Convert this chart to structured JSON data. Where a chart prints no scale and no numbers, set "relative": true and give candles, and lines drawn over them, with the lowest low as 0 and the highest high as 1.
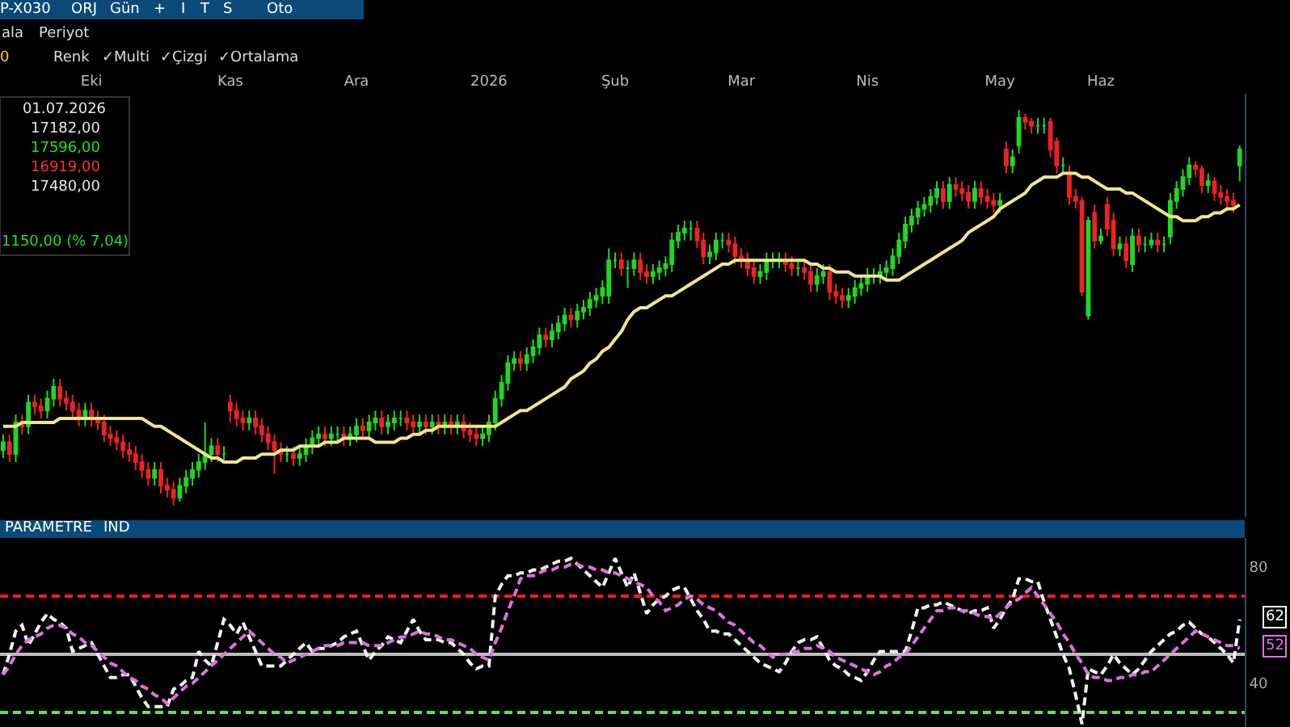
{
  "chart_data": [
    {
      "type": "candlestick",
      "relative": true,
      "tick_labels": "x",
      "categories": [
        null,
        null,
        null,
        null,
        null,
        null,
        null,
        null,
        null,
        null,
        null,
        null,
        null,
        null,
        "Eki",
        null,
        null,
        null,
        null,
        null,
        null,
        null,
        null,
        null,
        null,
        null,
        null,
        null,
        null,
        null,
        null,
        null,
        null,
        null,
        null,
        null,
        "Kas",
        null,
        null,
        null,
        null,
        null,
        null,
        null,
        null,
        null,
        null,
        null,
        null,
        null,
        null,
        null,
        null,
        null,
        null,
        null,
        "Ara",
        null,
        null,
        null,
        null,
        null,
        null,
        null,
        null,
        null,
        null,
        null,
        null,
        null,
        null,
        null,
        null,
        null,
        null,
        null,
        null,
        "2026",
        null,
        null,
        null,
        null,
        null,
        null,
        null,
        null,
        null,
        null,
        null,
        null,
        null,
        null,
        null,
        null,
        null,
        null,
        null,
        "Şub",
        null,
        null,
        null,
        null,
        null,
        null,
        null,
        null,
        null,
        null,
        null,
        null,
        null,
        null,
        null,
        null,
        null,
        null,
        null,
        "Mar",
        null,
        null,
        null,
        null,
        null,
        null,
        null,
        null,
        null,
        null,
        null,
        null,
        null,
        null,
        null,
        null,
        null,
        null,
        null,
        "Nis",
        null,
        null,
        null,
        null,
        null,
        null,
        null,
        null,
        null,
        null,
        null,
        null,
        null,
        null,
        null,
        null,
        null,
        null,
        null,
        null,
        "May",
        null,
        null,
        null,
        null,
        null,
        null,
        null,
        null,
        null,
        null,
        null,
        null,
        null,
        null,
        null,
        "Haz",
        null,
        null,
        null,
        null,
        null,
        null,
        null,
        null,
        null,
        null,
        null,
        null,
        null,
        null,
        null,
        null,
        null,
        null,
        null,
        null,
        null,
        null
      ],
      "colors": [
        "#1fd81f",
        "#ee2222",
        "#1fd81f",
        "#ee2222",
        "#1fd81f",
        "#ee2222",
        "#ee2222",
        "#1fd81f",
        "#1fd81f",
        "#ee2222",
        "#ee2222",
        "#ee2222",
        "#ee2222",
        "#1fd81f",
        "#ee2222",
        "#ee2222",
        "#ee2222",
        "#ee2222",
        "#ee2222",
        "#ee2222",
        "#ee2222",
        "#ee2222",
        "#ee2222",
        "#ee2222",
        "#1fd81f",
        "#ee2222",
        "#ee2222",
        "#ee2222",
        "#1fd81f",
        "#1fd81f",
        "#1fd81f",
        "#1fd81f",
        "#1fd81f",
        "#1fd81f",
        "#ee2222",
        "#1fd81f",
        "#ee2222",
        "#ee2222",
        "#ee2222",
        "#1fd81f",
        "#ee2222",
        "#ee2222",
        "#ee2222",
        "#ee2222",
        "#ee2222",
        "#1fd81f",
        "#ee2222",
        "#1fd81f",
        "#1fd81f",
        "#1fd81f",
        "#1fd81f",
        "#ee2222",
        "#1fd81f",
        "#1fd81f",
        "#ee2222",
        "#1fd81f",
        "#1fd81f",
        "#ee2222",
        "#1fd81f",
        "#1fd81f",
        "#ee2222",
        "#1fd81f",
        "#1fd81f",
        "#1fd81f",
        "#ee2222",
        "#ee2222",
        "#1fd81f",
        "#ee2222",
        "#1fd81f",
        "#ee2222",
        "#1fd81f",
        "#ee2222",
        "#1fd81f",
        "#ee2222",
        "#ee2222",
        "#ee2222",
        "#1fd81f",
        "#1fd81f",
        "#1fd81f",
        "#1fd81f",
        "#1fd81f",
        "#1fd81f",
        "#ee2222",
        "#1fd81f",
        "#1fd81f",
        "#1fd81f",
        "#ee2222",
        "#1fd81f",
        "#1fd81f",
        "#1fd81f",
        "#ee2222",
        "#1fd81f",
        "#1fd81f",
        "#1fd81f",
        "#1fd81f",
        "#1fd81f",
        "#1fd81f",
        "#1fd81f",
        "#ee2222",
        "#1fd81f",
        "#1fd81f",
        "#ee2222",
        "#ee2222",
        "#1fd81f",
        "#1fd81f",
        "#1fd81f",
        "#1fd81f",
        "#1fd81f",
        "#1fd81f",
        "#1fd81f",
        "#ee2222",
        "#ee2222",
        "#1fd81f",
        "#1fd81f",
        "#1fd81f",
        "#ee2222",
        "#ee2222",
        "#ee2222",
        "#ee2222",
        "#ee2222",
        "#1fd81f",
        "#1fd81f",
        "#1fd81f",
        "#1fd81f",
        "#ee2222",
        "#ee2222",
        "#1fd81f",
        "#ee2222",
        "#ee2222",
        "#1fd81f",
        "#1fd81f",
        "#ee2222",
        "#ee2222",
        "#ee2222",
        "#1fd81f",
        "#1fd81f",
        "#1fd81f",
        "#1fd81f",
        "#1fd81f",
        "#1fd81f",
        "#1fd81f",
        "#1fd81f",
        "#1fd81f",
        "#1fd81f",
        "#1fd81f",
        "#1fd81f",
        "#1fd81f",
        "#1fd81f",
        "#1fd81f",
        "#ee2222",
        "#1fd81f",
        "#ee2222",
        "#ee2222",
        "#ee2222",
        "#1fd81f",
        "#ee2222",
        "#ee2222",
        "#ee2222",
        "#1fd81f",
        "#ee2222",
        "#1fd81f",
        "#1fd81f",
        "#ee2222",
        "#ee2222",
        "#1fd81f",
        "#1fd81f",
        "#ee2222",
        "#ee2222",
        "#1fd81f",
        "#ee2222",
        "#ee2222",
        "#ee2222",
        "#1fd81f",
        "#ee2222",
        "#1fd81f",
        "#ee2222",
        "#ee2222",
        "#1fd81f",
        "#ee2222",
        "#1fd81f",
        "#ee2222",
        "#1fd81f",
        "#1fd81f",
        "#ee2222",
        "#1fd81f",
        "#1fd81f",
        "#1fd81f",
        "#1fd81f",
        "#1fd81f",
        "#ee2222",
        "#ee2222",
        "#1fd81f",
        "#ee2222",
        "#ee2222",
        "#ee2222",
        "#ee2222",
        "#1fd81f"
      ],
      "ohlc": [
        [
          0.14,
          0.18,
          0.12,
          0.16
        ],
        [
          0.16,
          0.18,
          0.11,
          0.13
        ],
        [
          0.13,
          0.23,
          0.11,
          0.21
        ],
        [
          0.21,
          0.23,
          0.18,
          0.2
        ],
        [
          0.2,
          0.28,
          0.18,
          0.26
        ],
        [
          0.26,
          0.28,
          0.23,
          0.25
        ],
        [
          0.25,
          0.27,
          0.22,
          0.24
        ],
        [
          0.24,
          0.29,
          0.22,
          0.27
        ],
        [
          0.27,
          0.32,
          0.25,
          0.3
        ],
        [
          0.3,
          0.32,
          0.25,
          0.27
        ],
        [
          0.27,
          0.29,
          0.24,
          0.26
        ],
        [
          0.26,
          0.28,
          0.22,
          0.24
        ],
        [
          0.24,
          0.26,
          0.2,
          0.22
        ],
        [
          0.22,
          0.26,
          0.2,
          0.24
        ],
        [
          0.24,
          0.26,
          0.2,
          0.22
        ],
        [
          0.22,
          0.24,
          0.19,
          0.21
        ],
        [
          0.21,
          0.23,
          0.16,
          0.18
        ],
        [
          0.18,
          0.2,
          0.15,
          0.17
        ],
        [
          0.17,
          0.19,
          0.14,
          0.16
        ],
        [
          0.16,
          0.18,
          0.12,
          0.14
        ],
        [
          0.14,
          0.16,
          0.11,
          0.13
        ],
        [
          0.13,
          0.15,
          0.09,
          0.11
        ],
        [
          0.11,
          0.13,
          0.07,
          0.09
        ],
        [
          0.09,
          0.11,
          0.05,
          0.07
        ],
        [
          0.07,
          0.11,
          0.05,
          0.09
        ],
        [
          0.09,
          0.11,
          0.03,
          0.05
        ],
        [
          0.05,
          0.07,
          0.02,
          0.04
        ],
        [
          0.04,
          0.06,
          0,
          0.02
        ],
        [
          0.02,
          0.07,
          0.01,
          0.05
        ],
        [
          0.05,
          0.09,
          0.03,
          0.07
        ],
        [
          0.07,
          0.11,
          0.05,
          0.09
        ],
        [
          0.09,
          0.13,
          0.07,
          0.11
        ],
        [
          0.11,
          0.21,
          0.09,
          0.13
        ],
        [
          0.13,
          0.17,
          0.11,
          0.15
        ],
        [
          0.15,
          0.17,
          0.11,
          0.13
        ],
        [
          0.13,
          0.15,
          0.11,
          0.13
        ],
        [
          0.26,
          0.28,
          0.21,
          0.24
        ],
        [
          0.24,
          0.26,
          0.2,
          0.22
        ],
        [
          0.22,
          0.24,
          0.19,
          0.21
        ],
        [
          0.21,
          0.24,
          0.19,
          0.22
        ],
        [
          0.22,
          0.24,
          0.18,
          0.2
        ],
        [
          0.2,
          0.22,
          0.16,
          0.18
        ],
        [
          0.18,
          0.2,
          0.14,
          0.16
        ],
        [
          0.16,
          0.18,
          0.08,
          0.14
        ],
        [
          0.14,
          0.16,
          0.11,
          0.13
        ],
        [
          0.13,
          0.15,
          0.11,
          0.13
        ],
        [
          0.13,
          0.15,
          0.1,
          0.12
        ],
        [
          0.12,
          0.15,
          0.1,
          0.13
        ],
        [
          0.13,
          0.17,
          0.11,
          0.15
        ],
        [
          0.15,
          0.19,
          0.13,
          0.17
        ],
        [
          0.17,
          0.2,
          0.15,
          0.18
        ],
        [
          0.18,
          0.2,
          0.15,
          0.17
        ],
        [
          0.17,
          0.2,
          0.15,
          0.18
        ],
        [
          0.18,
          0.2,
          0.16,
          0.18
        ],
        [
          0.18,
          0.2,
          0.15,
          0.17
        ],
        [
          0.17,
          0.2,
          0.15,
          0.18
        ],
        [
          0.18,
          0.22,
          0.16,
          0.2
        ],
        [
          0.2,
          0.22,
          0.17,
          0.19
        ],
        [
          0.19,
          0.23,
          0.17,
          0.21
        ],
        [
          0.21,
          0.24,
          0.19,
          0.22
        ],
        [
          0.22,
          0.24,
          0.18,
          0.2
        ],
        [
          0.2,
          0.23,
          0.18,
          0.21
        ],
        [
          0.21,
          0.24,
          0.19,
          0.22
        ],
        [
          0.22,
          0.24,
          0.2,
          0.22
        ],
        [
          0.22,
          0.24,
          0.19,
          0.21
        ],
        [
          0.21,
          0.23,
          0.18,
          0.2
        ],
        [
          0.2,
          0.23,
          0.18,
          0.21
        ],
        [
          0.21,
          0.23,
          0.18,
          0.2
        ],
        [
          0.2,
          0.23,
          0.18,
          0.21
        ],
        [
          0.21,
          0.23,
          0.18,
          0.2
        ],
        [
          0.2,
          0.23,
          0.18,
          0.21
        ],
        [
          0.21,
          0.23,
          0.18,
          0.2
        ],
        [
          0.2,
          0.23,
          0.18,
          0.21
        ],
        [
          0.21,
          0.23,
          0.17,
          0.19
        ],
        [
          0.19,
          0.21,
          0.16,
          0.18
        ],
        [
          0.18,
          0.2,
          0.15,
          0.17
        ],
        [
          0.17,
          0.2,
          0.15,
          0.18
        ],
        [
          0.18,
          0.23,
          0.16,
          0.21
        ],
        [
          0.21,
          0.29,
          0.19,
          0.27
        ],
        [
          0.27,
          0.33,
          0.25,
          0.31
        ],
        [
          0.31,
          0.38,
          0.29,
          0.36
        ],
        [
          0.36,
          0.39,
          0.34,
          0.37
        ],
        [
          0.37,
          0.39,
          0.34,
          0.36
        ],
        [
          0.36,
          0.4,
          0.34,
          0.38
        ],
        [
          0.38,
          0.42,
          0.36,
          0.4
        ],
        [
          0.4,
          0.45,
          0.38,
          0.43
        ],
        [
          0.43,
          0.45,
          0.4,
          0.42
        ],
        [
          0.42,
          0.46,
          0.4,
          0.44
        ],
        [
          0.44,
          0.48,
          0.42,
          0.46
        ],
        [
          0.46,
          0.5,
          0.44,
          0.48
        ],
        [
          0.48,
          0.5,
          0.45,
          0.47
        ],
        [
          0.47,
          0.51,
          0.45,
          0.49
        ],
        [
          0.49,
          0.52,
          0.47,
          0.5
        ],
        [
          0.5,
          0.54,
          0.48,
          0.52
        ],
        [
          0.52,
          0.55,
          0.5,
          0.53
        ],
        [
          0.53,
          0.57,
          0.51,
          0.55
        ],
        [
          0.53,
          0.65,
          0.51,
          0.62
        ],
        [
          0.62,
          0.64,
          0.6,
          0.62
        ],
        [
          0.62,
          0.64,
          0.58,
          0.6
        ],
        [
          0.6,
          0.62,
          0.55,
          0.6
        ],
        [
          0.6,
          0.64,
          0.58,
          0.62
        ],
        [
          0.62,
          0.64,
          0.57,
          0.59
        ],
        [
          0.59,
          0.61,
          0.56,
          0.58
        ],
        [
          0.58,
          0.61,
          0.56,
          0.59
        ],
        [
          0.59,
          0.62,
          0.57,
          0.6
        ],
        [
          0.6,
          0.63,
          0.58,
          0.61
        ],
        [
          0.61,
          0.69,
          0.59,
          0.67
        ],
        [
          0.67,
          0.71,
          0.65,
          0.69
        ],
        [
          0.69,
          0.72,
          0.67,
          0.7
        ],
        [
          0.7,
          0.72,
          0.67,
          0.7
        ],
        [
          0.7,
          0.72,
          0.65,
          0.67
        ],
        [
          0.67,
          0.69,
          0.61,
          0.63
        ],
        [
          0.63,
          0.66,
          0.61,
          0.64
        ],
        [
          0.64,
          0.69,
          0.62,
          0.67
        ],
        [
          0.67,
          0.69,
          0.65,
          0.67
        ],
        [
          0.67,
          0.69,
          0.64,
          0.66
        ],
        [
          0.66,
          0.68,
          0.61,
          0.63
        ],
        [
          0.63,
          0.65,
          0.6,
          0.62
        ],
        [
          0.62,
          0.64,
          0.58,
          0.6
        ],
        [
          0.6,
          0.62,
          0.56,
          0.58
        ],
        [
          0.58,
          0.61,
          0.56,
          0.59
        ],
        [
          0.59,
          0.64,
          0.57,
          0.62
        ],
        [
          0.62,
          0.64,
          0.6,
          0.62
        ],
        [
          0.62,
          0.64,
          0.6,
          0.62
        ],
        [
          0.62,
          0.64,
          0.59,
          0.61
        ],
        [
          0.61,
          0.63,
          0.58,
          0.6
        ],
        [
          0.6,
          0.62,
          0.58,
          0.6
        ],
        [
          0.6,
          0.62,
          0.57,
          0.59
        ],
        [
          0.59,
          0.61,
          0.54,
          0.56
        ],
        [
          0.56,
          0.6,
          0.54,
          0.58
        ],
        [
          0.58,
          0.61,
          0.56,
          0.59
        ],
        [
          0.59,
          0.61,
          0.52,
          0.54
        ],
        [
          0.54,
          0.56,
          0.51,
          0.53
        ],
        [
          0.53,
          0.55,
          0.5,
          0.52
        ],
        [
          0.52,
          0.55,
          0.5,
          0.53
        ],
        [
          0.53,
          0.57,
          0.51,
          0.55
        ],
        [
          0.55,
          0.58,
          0.53,
          0.56
        ],
        [
          0.56,
          0.6,
          0.54,
          0.58
        ],
        [
          0.58,
          0.6,
          0.56,
          0.58
        ],
        [
          0.58,
          0.61,
          0.56,
          0.59
        ],
        [
          0.59,
          0.62,
          0.57,
          0.6
        ],
        [
          0.6,
          0.65,
          0.58,
          0.63
        ],
        [
          0.63,
          0.69,
          0.61,
          0.67
        ],
        [
          0.67,
          0.73,
          0.65,
          0.71
        ],
        [
          0.71,
          0.75,
          0.69,
          0.73
        ],
        [
          0.73,
          0.77,
          0.71,
          0.75
        ],
        [
          0.75,
          0.78,
          0.73,
          0.76
        ],
        [
          0.76,
          0.8,
          0.74,
          0.78
        ],
        [
          0.78,
          0.82,
          0.76,
          0.8
        ],
        [
          0.8,
          0.82,
          0.75,
          0.77
        ],
        [
          0.77,
          0.83,
          0.75,
          0.81
        ],
        [
          0.81,
          0.83,
          0.78,
          0.8
        ],
        [
          0.8,
          0.82,
          0.77,
          0.79
        ],
        [
          0.79,
          0.81,
          0.75,
          0.77
        ],
        [
          0.77,
          0.82,
          0.75,
          0.8
        ],
        [
          0.8,
          0.82,
          0.76,
          0.78
        ],
        [
          0.78,
          0.8,
          0.75,
          0.77
        ],
        [
          0.77,
          0.79,
          0.74,
          0.76
        ],
        [
          0.76,
          0.79,
          0.74,
          0.77
        ],
        [
          0.9,
          0.92,
          0.84,
          0.86
        ],
        [
          0.86,
          0.9,
          0.84,
          0.88
        ],
        [
          0.91,
          1.0,
          0.89,
          0.98
        ],
        [
          0.98,
          0.99,
          0.95,
          0.97
        ],
        [
          0.97,
          0.98,
          0.94,
          0.96
        ],
        [
          0.96,
          0.98,
          0.94,
          0.96
        ],
        [
          0.96,
          0.98,
          0.94,
          0.96
        ],
        [
          0.97,
          0.98,
          0.88,
          0.9
        ],
        [
          0.92,
          0.93,
          0.84,
          0.86
        ],
        [
          0.86,
          0.88,
          0.84,
          0.86
        ],
        [
          0.84,
          0.86,
          0.76,
          0.78
        ],
        [
          0.78,
          0.8,
          0.75,
          0.77
        ],
        [
          0.77,
          0.78,
          0.53,
          0.54
        ],
        [
          0.48,
          0.73,
          0.47,
          0.72
        ],
        [
          0.74,
          0.76,
          0.65,
          0.67
        ],
        [
          0.67,
          0.7,
          0.66,
          0.68
        ],
        [
          0.76,
          0.78,
          0.68,
          0.7
        ],
        [
          0.72,
          0.74,
          0.63,
          0.65
        ],
        [
          0.65,
          0.68,
          0.63,
          0.66
        ],
        [
          0.66,
          0.68,
          0.6,
          0.62
        ],
        [
          0.61,
          0.7,
          0.59,
          0.68
        ],
        [
          0.68,
          0.7,
          0.64,
          0.66
        ],
        [
          0.66,
          0.68,
          0.64,
          0.66
        ],
        [
          0.66,
          0.69,
          0.65,
          0.67
        ],
        [
          0.67,
          0.69,
          0.64,
          0.66
        ],
        [
          0.66,
          0.68,
          0.64,
          0.66
        ],
        [
          0.68,
          0.79,
          0.66,
          0.77
        ],
        [
          0.77,
          0.82,
          0.75,
          0.8
        ],
        [
          0.8,
          0.85,
          0.78,
          0.83
        ],
        [
          0.83,
          0.88,
          0.81,
          0.86
        ],
        [
          0.86,
          0.87,
          0.83,
          0.85
        ],
        [
          0.85,
          0.86,
          0.79,
          0.81
        ],
        [
          0.81,
          0.84,
          0.79,
          0.82
        ],
        [
          0.82,
          0.83,
          0.77,
          0.79
        ],
        [
          0.79,
          0.81,
          0.76,
          0.78
        ],
        [
          0.78,
          0.8,
          0.75,
          0.77
        ],
        [
          0.77,
          0.79,
          0.74,
          0.76
        ],
        [
          0.86,
          0.91,
          0.82,
          0.9
        ]
      ],
      "series": [
        {
          "type": "line",
          "color": "#f0e68c",
          "values": [
            0.2,
            0.2,
            0.2,
            0.21,
            0.21,
            0.21,
            0.21,
            0.21,
            0.21,
            0.22,
            0.22,
            0.22,
            0.22,
            0.22,
            0.22,
            0.22,
            0.22,
            0.22,
            0.22,
            0.22,
            0.22,
            0.22,
            0.22,
            0.21,
            0.2,
            0.2,
            0.19,
            0.18,
            0.17,
            0.16,
            0.15,
            0.14,
            0.13,
            0.12,
            0.12,
            0.11,
            0.11,
            0.11,
            0.12,
            0.12,
            0.12,
            0.13,
            0.13,
            0.13,
            0.14,
            0.14,
            0.14,
            0.15,
            0.15,
            0.15,
            0.15,
            0.16,
            0.16,
            0.16,
            0.17,
            0.17,
            0.17,
            0.17,
            0.17,
            0.16,
            0.16,
            0.16,
            0.16,
            0.17,
            0.17,
            0.18,
            0.18,
            0.19,
            0.19,
            0.2,
            0.2,
            0.2,
            0.2,
            0.2,
            0.2,
            0.2,
            0.2,
            0.2,
            0.2,
            0.21,
            0.22,
            0.23,
            0.24,
            0.24,
            0.25,
            0.26,
            0.27,
            0.28,
            0.29,
            0.3,
            0.32,
            0.33,
            0.34,
            0.36,
            0.37,
            0.39,
            0.4,
            0.42,
            0.44,
            0.47,
            0.49,
            0.5,
            0.5,
            0.51,
            0.52,
            0.53,
            0.53,
            0.54,
            0.55,
            0.56,
            0.57,
            0.58,
            0.59,
            0.6,
            0.61,
            0.61,
            0.62,
            0.62,
            0.62,
            0.62,
            0.62,
            0.62,
            0.62,
            0.62,
            0.62,
            0.62,
            0.62,
            0.62,
            0.61,
            0.61,
            0.6,
            0.6,
            0.59,
            0.59,
            0.59,
            0.58,
            0.58,
            0.58,
            0.58,
            0.58,
            0.57,
            0.57,
            0.57,
            0.58,
            0.59,
            0.6,
            0.61,
            0.62,
            0.63,
            0.64,
            0.65,
            0.66,
            0.67,
            0.69,
            0.7,
            0.71,
            0.72,
            0.73,
            0.75,
            0.76,
            0.77,
            0.78,
            0.79,
            0.81,
            0.82,
            0.83,
            0.83,
            0.83,
            0.84,
            0.84,
            0.84,
            0.83,
            0.83,
            0.82,
            0.81,
            0.8,
            0.8,
            0.8,
            0.79,
            0.79,
            0.78,
            0.77,
            0.76,
            0.75,
            0.74,
            0.73,
            0.73,
            0.72,
            0.72,
            0.72,
            0.73,
            0.73,
            0.74,
            0.74,
            0.75,
            0.75,
            0.76
          ]
        }
      ],
      "annotations": [
        "01.07.2026",
        "17182,00",
        "17596,00",
        "16919,00",
        "17480,00",
        "1150,00 (% 7,04)",
        "P-X030",
        "ORJ",
        "Gün",
        "+",
        "I",
        "T",
        "S",
        "Oto",
        "ala",
        "Periyot",
        "0",
        "Renk",
        "✓Multi",
        "✓Çizgi",
        "✓Ortalama"
      ]
    },
    {
      "type": "line",
      "tick_labels": "y",
      "line_style": "dashed",
      "categories": [
        null,
        null,
        null,
        null,
        null,
        null,
        null,
        null,
        null,
        null,
        null,
        null,
        null,
        null,
        null,
        null,
        null,
        null,
        null,
        null,
        null,
        null,
        null,
        null,
        null,
        null,
        null,
        null,
        null,
        null,
        null,
        null,
        null,
        null,
        null,
        null,
        null,
        null,
        null,
        null,
        null,
        null,
        null,
        null,
        null,
        null,
        null,
        null,
        null,
        null,
        null,
        null,
        null,
        null,
        null,
        null,
        null,
        null,
        null,
        null,
        null,
        null,
        null,
        null,
        null,
        null,
        null,
        null,
        null,
        null,
        null,
        null,
        null,
        null,
        null,
        null,
        null,
        null,
        null,
        null,
        null,
        null,
        null,
        null,
        null,
        null,
        null,
        null,
        null,
        null,
        null,
        null,
        null,
        null,
        null,
        null,
        null,
        null,
        null,
        null,
        null,
        null,
        null,
        null,
        null,
        null,
        null,
        null,
        null,
        null,
        null,
        null,
        null,
        null,
        null,
        null,
        null,
        null,
        null,
        null,
        null,
        null,
        null,
        null,
        null,
        null,
        null,
        null,
        null,
        null,
        null,
        null,
        null,
        null,
        null,
        null,
        null,
        null,
        null,
        null,
        null,
        null,
        null,
        null,
        null,
        null,
        null,
        null,
        null,
        null,
        null,
        null,
        null,
        null,
        null,
        null,
        null,
        null,
        null,
        null,
        null,
        null,
        null,
        null,
        null,
        null,
        null,
        null,
        null,
        null,
        null,
        null,
        null,
        null,
        null,
        null,
        null,
        null,
        null,
        null,
        null,
        null,
        null,
        null,
        null,
        null,
        null,
        null,
        null,
        null,
        null,
        null,
        null,
        null,
        null,
        null,
        null
      ],
      "ylim": [
        25,
        90
      ],
      "yticks": [
        40,
        80
      ],
      "ref_lines": [
        {
          "axis": "y",
          "value": 70,
          "color": "#ff1a1a",
          "line_style": "dashed"
        },
        {
          "axis": "y",
          "value": 30,
          "color": "#66dd55",
          "line_style": "dashed"
        },
        {
          "axis": "y",
          "value": 50,
          "color": "#bdbdbd",
          "line_style": "solid"
        }
      ],
      "series": [
        {
          "color": "#f2f2f2",
          "values": [
            43,
            50,
            58,
            60,
            53,
            57,
            61,
            64,
            62,
            61,
            59,
            51,
            52,
            53,
            54,
            50,
            46,
            42,
            42,
            43,
            43,
            39,
            35,
            32,
            32,
            32,
            32,
            38,
            39,
            41,
            42,
            51,
            48,
            46,
            54,
            62,
            60,
            57,
            61,
            56,
            51,
            46,
            46,
            46,
            46,
            48,
            50,
            52,
            54,
            51,
            52,
            52,
            53,
            54,
            56,
            57,
            58,
            53,
            48,
            51,
            53,
            56,
            55,
            54,
            58,
            62,
            58,
            55,
            55,
            55,
            54,
            54,
            52,
            50,
            47,
            45,
            46,
            46,
            70,
            74,
            77,
            77,
            78,
            78,
            79,
            79,
            80,
            81,
            82,
            82,
            83,
            81,
            79,
            77,
            75,
            73,
            78,
            83,
            78,
            73,
            78,
            71,
            64,
            67,
            69,
            70,
            72,
            73,
            73,
            69,
            65,
            62,
            58,
            58,
            57,
            57,
            55,
            53,
            51,
            49,
            47,
            46,
            45,
            44,
            47,
            51,
            54,
            55,
            55,
            56,
            52,
            48,
            46,
            45,
            43,
            42,
            41,
            44,
            48,
            51,
            51,
            51,
            51,
            51,
            58,
            66,
            66,
            67,
            67,
            68,
            67,
            66,
            65,
            64,
            65,
            65,
            66,
            59,
            62,
            66,
            69,
            76,
            76,
            75,
            75,
            68,
            62,
            56,
            50,
            45,
            36,
            26,
            45,
            44,
            43,
            46,
            50,
            47,
            45,
            43,
            45,
            48,
            51,
            53,
            55,
            57,
            58,
            60,
            61,
            59,
            57,
            56,
            54,
            52,
            50,
            47,
            62
          ]
        },
        {
          "color": "#e070e0",
          "values": [
            43,
            46,
            50,
            53,
            55,
            56,
            57,
            59,
            60,
            60,
            59,
            57,
            56,
            54,
            53,
            51,
            49,
            47,
            46,
            44,
            42,
            41,
            39,
            38,
            36,
            35,
            33,
            35,
            37,
            39,
            40,
            42,
            44,
            46,
            48,
            50,
            52,
            54,
            56,
            58,
            56,
            54,
            52,
            50,
            49,
            47,
            48,
            49,
            50,
            51,
            52,
            53,
            53,
            53,
            54,
            54,
            54,
            54,
            53,
            53,
            53,
            54,
            55,
            56,
            56,
            57,
            58,
            57,
            57,
            56,
            55,
            55,
            54,
            53,
            52,
            50,
            49,
            48,
            54,
            59,
            65,
            70,
            76,
            77,
            77,
            78,
            79,
            79,
            80,
            80,
            81,
            81,
            80,
            80,
            79,
            79,
            78,
            78,
            77,
            76,
            75,
            74,
            73,
            70,
            68,
            65,
            66,
            67,
            69,
            70,
            69,
            67,
            66,
            65,
            63,
            61,
            60,
            58,
            56,
            54,
            53,
            51,
            49,
            50,
            50,
            51,
            51,
            52,
            52,
            53,
            52,
            51,
            49,
            48,
            47,
            46,
            45,
            44,
            43,
            44,
            46,
            47,
            49,
            50,
            53,
            56,
            59,
            62,
            65,
            65,
            66,
            66,
            65,
            65,
            64,
            63,
            63,
            62,
            64,
            66,
            68,
            69,
            71,
            73,
            70,
            67,
            64,
            61,
            57,
            54,
            50,
            47,
            43,
            42,
            42,
            41,
            41,
            42,
            42,
            43,
            43,
            44,
            44,
            46,
            48,
            50,
            52,
            54,
            56,
            58,
            57,
            56,
            55,
            54,
            53,
            53,
            52
          ]
        }
      ],
      "annotations": [
        "PARAMETRE",
        "IND",
        "62",
        "52"
      ]
    }
  ]
}
